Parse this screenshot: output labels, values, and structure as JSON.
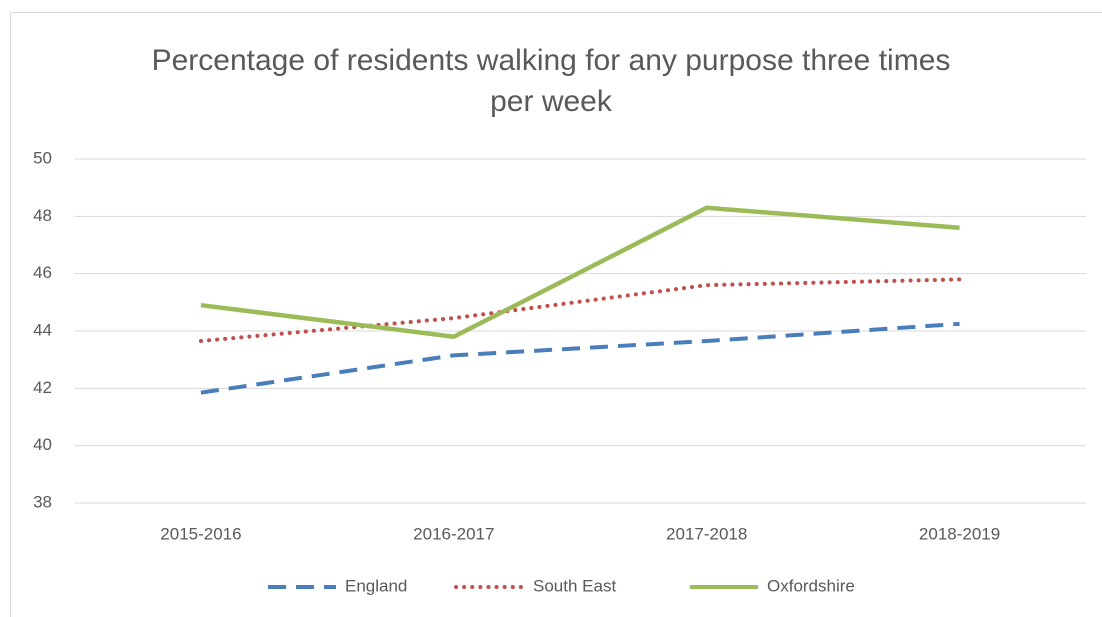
{
  "chart_data": {
    "type": "line",
    "title": "Percentage of residents walking for any purpose three times per week",
    "categories": [
      "2015-2016",
      "2016-2017",
      "2017-2018",
      "2018-2019"
    ],
    "series": [
      {
        "name": "England",
        "color": "#4a7ebb",
        "dash": "dashed",
        "values": [
          41.85,
          43.15,
          43.65,
          44.25
        ]
      },
      {
        "name": "South East",
        "color": "#c0504d",
        "dash": "dotted",
        "values": [
          43.65,
          44.45,
          45.6,
          45.8
        ]
      },
      {
        "name": "Oxfordshire",
        "color": "#9bbb59",
        "dash": "solid",
        "values": [
          44.9,
          43.8,
          48.3,
          47.6
        ]
      }
    ],
    "ylim": [
      38,
      50
    ],
    "yticks": [
      38,
      40,
      42,
      44,
      46,
      48,
      50
    ],
    "grid": true,
    "legend": "bottom"
  }
}
